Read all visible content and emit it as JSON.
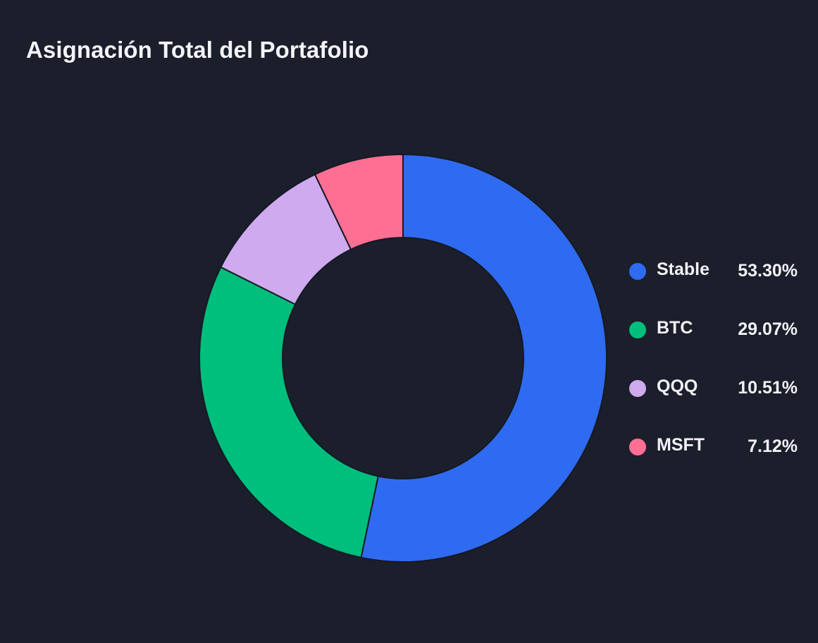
{
  "title": "Asignación Total del Portafolio",
  "chart_data": {
    "type": "pie",
    "variant": "donut",
    "title": "Asignación Total del Portafolio",
    "start_angle_deg": 0,
    "direction": "clockwise",
    "legend_position": "right",
    "categories": [
      "Stable",
      "BTC",
      "QQQ",
      "MSFT"
    ],
    "values": [
      53.3,
      29.07,
      10.51,
      7.12
    ],
    "labels": [
      "53.30%",
      "29.07%",
      "10.51%",
      "7.12%"
    ],
    "colors": [
      "#2f6bf0",
      "#00be7c",
      "#cfaaef",
      "#ff6f93"
    ]
  },
  "legend": [
    {
      "label": "Stable",
      "value": "53.30%",
      "color": "#2f6bf0"
    },
    {
      "label": "BTC",
      "value": "29.07%",
      "color": "#00be7c"
    },
    {
      "label": "QQQ",
      "value": "10.51%",
      "color": "#cfaaef"
    },
    {
      "label": "MSFT",
      "value": "7.12%",
      "color": "#ff6f93"
    }
  ]
}
